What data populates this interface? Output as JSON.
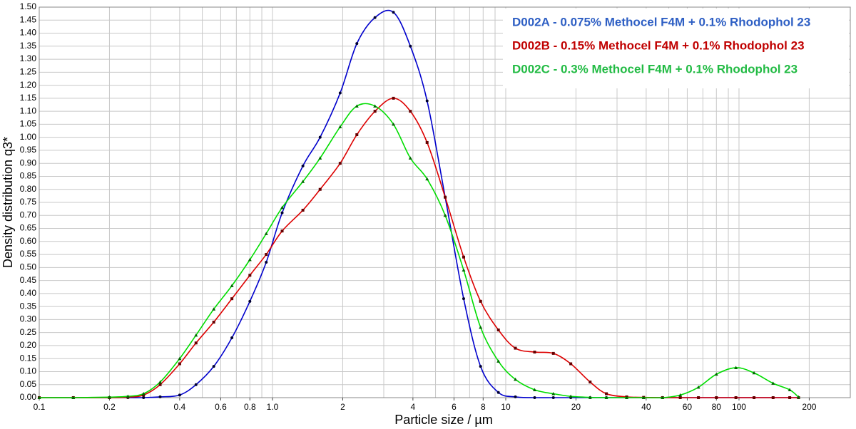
{
  "chart_data": {
    "type": "line",
    "xlabel": "Particle size / µm",
    "ylabel": "Density distribution q3*",
    "xscale": "log",
    "xlim": [
      0.1,
      300
    ],
    "xticks": [
      0.1,
      0.2,
      0.4,
      0.6,
      0.8,
      {
        "value": 1,
        "label": "1.0"
      },
      2,
      4,
      6,
      8,
      10,
      20,
      40,
      60,
      80,
      100,
      200
    ],
    "xgrid": [
      0.1,
      0.2,
      0.3,
      0.4,
      0.5,
      0.6,
      0.7,
      0.8,
      0.9,
      1,
      2,
      3,
      4,
      5,
      6,
      7,
      8,
      9,
      10,
      20,
      30,
      40,
      50,
      60,
      70,
      80,
      90,
      100,
      200,
      300
    ],
    "ylim": [
      0,
      1.5
    ],
    "yticks": [
      {
        "value": 0,
        "label": "0.00"
      },
      {
        "value": 0.05,
        "label": "0.05"
      },
      {
        "value": 0.1,
        "label": "0.10"
      },
      {
        "value": 0.15,
        "label": "0.15"
      },
      {
        "value": 0.2,
        "label": "0.20"
      },
      {
        "value": 0.25,
        "label": "0.25"
      },
      {
        "value": 0.3,
        "label": "0.30"
      },
      {
        "value": 0.35,
        "label": "0.35"
      },
      {
        "value": 0.4,
        "label": "0.40"
      },
      {
        "value": 0.45,
        "label": "0.45"
      },
      {
        "value": 0.5,
        "label": "0.50"
      },
      {
        "value": 0.55,
        "label": "0.55"
      },
      {
        "value": 0.6,
        "label": "0.60"
      },
      {
        "value": 0.65,
        "label": "0.65"
      },
      {
        "value": 0.7,
        "label": "0.70"
      },
      {
        "value": 0.75,
        "label": "0.75"
      },
      {
        "value": 0.8,
        "label": "0.80"
      },
      {
        "value": 0.85,
        "label": "0.85"
      },
      {
        "value": 0.9,
        "label": "0.90"
      },
      {
        "value": 0.95,
        "label": "0.95"
      },
      {
        "value": 1,
        "label": "1.00"
      },
      {
        "value": 1.05,
        "label": "1.05"
      },
      {
        "value": 1.1,
        "label": "1.10"
      },
      {
        "value": 1.15,
        "label": "1.15"
      },
      {
        "value": 1.2,
        "label": "1.20"
      },
      {
        "value": 1.25,
        "label": "1.25"
      },
      {
        "value": 1.3,
        "label": "1.30"
      },
      {
        "value": 1.35,
        "label": "1.35"
      },
      {
        "value": 1.4,
        "label": "1.40"
      },
      {
        "value": 1.45,
        "label": "1.45"
      },
      {
        "value": 1.5,
        "label": "1.50"
      }
    ],
    "grid": true,
    "legend": "upper right",
    "x": [
      0.1,
      0.14,
      0.2,
      0.24,
      0.28,
      0.33,
      0.4,
      0.47,
      0.56,
      0.67,
      0.8,
      0.94,
      1.1,
      1.35,
      1.6,
      1.95,
      2.3,
      2.75,
      3.3,
      3.9,
      4.6,
      5.5,
      6.6,
      7.8,
      9.3,
      11,
      13.3,
      16,
      19,
      23,
      27,
      33,
      39,
      47,
      56,
      67,
      80,
      97,
      116,
      140,
      165,
      180
    ],
    "series": [
      {
        "name": "D002A - 0.075% Methocel F4M + 0.1% Rhodophol 23",
        "color": "#0000cc",
        "label_color": "#2e5fc4",
        "marker": "circle",
        "values": [
          0,
          0,
          0,
          0,
          0,
          0.003,
          0.01,
          0.05,
          0.12,
          0.23,
          0.37,
          0.52,
          0.71,
          0.89,
          1.0,
          1.17,
          1.36,
          1.46,
          1.48,
          1.35,
          1.14,
          0.77,
          0.38,
          0.12,
          0.02,
          0.003,
          0,
          0,
          0,
          0,
          0,
          0,
          0,
          0,
          0,
          0,
          0,
          0,
          0,
          0,
          0,
          0
        ]
      },
      {
        "name": "D002B - 0.15% Methocel F4M + 0.1% Rhodophol 23",
        "color": "#dd0000",
        "label_color": "#c00000",
        "marker": "square",
        "values": [
          0,
          0,
          0,
          0.002,
          0.01,
          0.05,
          0.13,
          0.21,
          0.29,
          0.38,
          0.47,
          0.55,
          0.64,
          0.72,
          0.8,
          0.9,
          1.01,
          1.1,
          1.15,
          1.1,
          0.98,
          0.77,
          0.54,
          0.37,
          0.26,
          0.19,
          0.175,
          0.17,
          0.13,
          0.06,
          0.015,
          0.003,
          0.001,
          0,
          0,
          0,
          0,
          0,
          0,
          0,
          0,
          0
        ]
      },
      {
        "name": "D002C - 0.3% Methocel F4M + 0.1% Rhodophol 23",
        "color": "#00dd00",
        "label_color": "#22bb44",
        "marker": "triangle",
        "values": [
          0,
          0,
          0.002,
          0.005,
          0.015,
          0.06,
          0.15,
          0.24,
          0.34,
          0.43,
          0.53,
          0.63,
          0.73,
          0.83,
          0.92,
          1.04,
          1.12,
          1.12,
          1.05,
          0.92,
          0.84,
          0.7,
          0.49,
          0.27,
          0.14,
          0.07,
          0.03,
          0.015,
          0.005,
          0.001,
          0,
          0,
          0,
          0,
          0.01,
          0.04,
          0.09,
          0.115,
          0.095,
          0.055,
          0.03,
          0.002
        ]
      }
    ]
  }
}
